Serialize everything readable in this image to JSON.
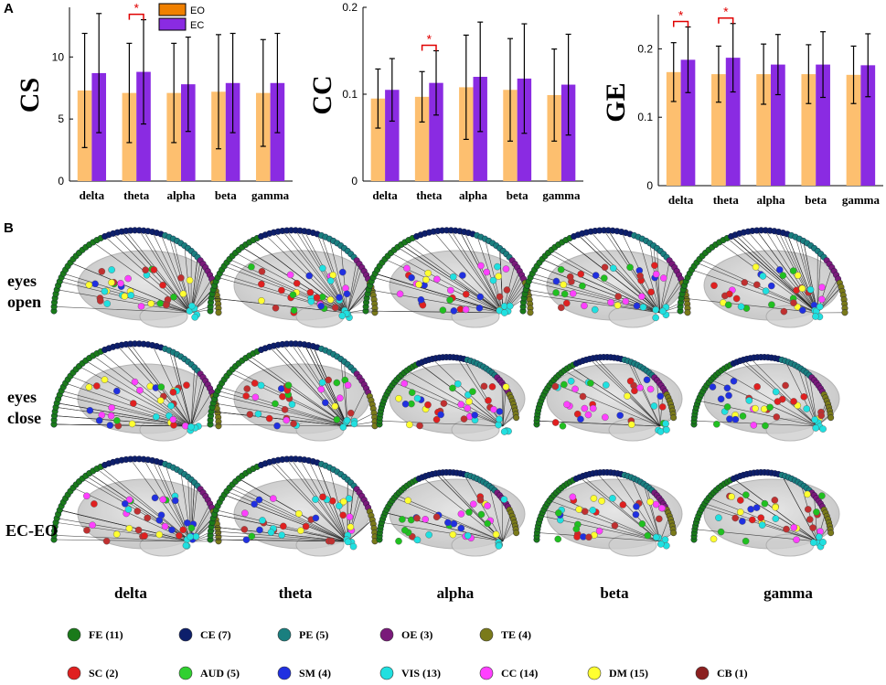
{
  "panel_a_label": "A",
  "panel_b_label": "B",
  "colors": {
    "eo": "#FDBF6F",
    "eo_legend": "#F08000",
    "ec": "#8A2BE2",
    "star": "#E00000"
  },
  "legend": {
    "eo": "EO",
    "ec": "EC"
  },
  "chart_data": [
    {
      "type": "bar",
      "ylabel": "CS",
      "categories": [
        "delta",
        "theta",
        "alpha",
        "beta",
        "gamma"
      ],
      "ylim": [
        0,
        14
      ],
      "yticks": [
        {
          "v": 0,
          "label": "0"
        },
        {
          "v": 5,
          "label": "5"
        },
        {
          "v": 10,
          "label": "10"
        }
      ],
      "series": [
        {
          "name": "EO",
          "values": [
            7.3,
            7.1,
            7.1,
            7.2,
            7.1
          ],
          "errors": [
            4.6,
            4.0,
            4.0,
            4.6,
            4.3
          ]
        },
        {
          "name": "EC",
          "values": [
            8.7,
            8.8,
            7.8,
            7.9,
            7.9
          ],
          "errors": [
            4.8,
            4.2,
            3.8,
            4.0,
            4.0
          ]
        }
      ],
      "significance": [
        {
          "index": 1,
          "label": "*"
        }
      ],
      "legend": [
        "EO",
        "EC"
      ]
    },
    {
      "type": "bar",
      "ylabel": "CC",
      "categories": [
        "delta",
        "theta",
        "alpha",
        "beta",
        "gamma"
      ],
      "ylim": [
        0,
        0.2
      ],
      "yticks": [
        {
          "v": 0,
          "label": "0"
        },
        {
          "v": 0.1,
          "label": "0.1"
        },
        {
          "v": 0.2,
          "label": "0.2"
        }
      ],
      "series": [
        {
          "name": "EO",
          "values": [
            0.095,
            0.097,
            0.108,
            0.105,
            0.099
          ],
          "errors": [
            0.034,
            0.029,
            0.06,
            0.059,
            0.053
          ]
        },
        {
          "name": "EC",
          "values": [
            0.105,
            0.113,
            0.12,
            0.118,
            0.111
          ],
          "errors": [
            0.036,
            0.037,
            0.063,
            0.063,
            0.058
          ]
        }
      ],
      "significance": [
        {
          "index": 1,
          "label": "*"
        }
      ]
    },
    {
      "type": "bar",
      "ylabel": "GE",
      "categories": [
        "delta",
        "theta",
        "alpha",
        "beta",
        "gamma"
      ],
      "ylim": [
        0,
        0.25
      ],
      "yticks": [
        {
          "v": 0,
          "label": "0"
        },
        {
          "v": 0.1,
          "label": "0.1"
        },
        {
          "v": 0.2,
          "label": "0.2"
        }
      ],
      "series": [
        {
          "name": "EO",
          "values": [
            0.166,
            0.163,
            0.163,
            0.163,
            0.162
          ],
          "errors": [
            0.043,
            0.041,
            0.044,
            0.043,
            0.042
          ]
        },
        {
          "name": "EC",
          "values": [
            0.184,
            0.187,
            0.177,
            0.177,
            0.176
          ],
          "errors": [
            0.048,
            0.05,
            0.044,
            0.048,
            0.046
          ]
        }
      ],
      "significance": [
        {
          "index": 0,
          "label": "*"
        },
        {
          "index": 1,
          "label": "*"
        }
      ]
    }
  ],
  "network": {
    "rows": [
      "eyes\nopen",
      "eyes\nclose",
      "EC-EO"
    ],
    "bands": [
      "delta",
      "theta",
      "alpha",
      "beta",
      "gamma"
    ],
    "arc_colors": [
      "#1A7A1A",
      "#0D1F6B",
      "#1A7F7F",
      "#7A1A7A",
      "#7A7A1A"
    ],
    "node_colors": [
      "#FF40FF",
      "#FFFF30",
      "#20E0E0",
      "#20C020",
      "#2030E0",
      "#C03030",
      "#E02020"
    ],
    "modules": [
      {
        "label": "FE (11)",
        "color": "#1A7A1A"
      },
      {
        "label": "CE (7)",
        "color": "#0D1F6B"
      },
      {
        "label": "PE (5)",
        "color": "#1A7F7F"
      },
      {
        "label": "OE (3)",
        "color": "#7A1A7A"
      },
      {
        "label": "TE (4)",
        "color": "#7A7A1A"
      },
      {
        "label": "SC (2)",
        "color": "#E02020"
      },
      {
        "label": "AUD (5)",
        "color": "#30D030"
      },
      {
        "label": "SM (4)",
        "color": "#2030E0"
      },
      {
        "label": "VIS (13)",
        "color": "#20E0E0"
      },
      {
        "label": "CC (14)",
        "color": "#FF40FF"
      },
      {
        "label": "DM (15)",
        "color": "#FFFF30"
      },
      {
        "label": "CB (1)",
        "color": "#8B2020"
      }
    ]
  }
}
